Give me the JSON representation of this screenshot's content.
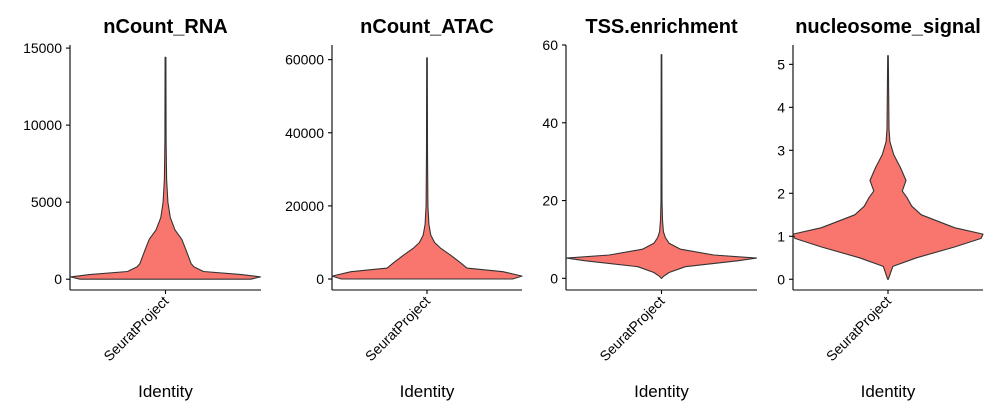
{
  "chart_data": [
    {
      "type": "violin",
      "title": "nCount_RNA",
      "categories": [
        "SeuratProject"
      ],
      "xlabel": "Identity",
      "ylabel": "",
      "yticks": [
        0,
        5000,
        10000,
        15000
      ],
      "ylim": [
        -700,
        15200
      ],
      "color": "#F8766D",
      "profile": [
        [
          0,
          0.9
        ],
        [
          150,
          1.0
        ],
        [
          300,
          0.8
        ],
        [
          500,
          0.4
        ],
        [
          800,
          0.3
        ],
        [
          1000,
          0.27
        ],
        [
          1500,
          0.24
        ],
        [
          2000,
          0.21
        ],
        [
          2600,
          0.17
        ],
        [
          3200,
          0.1
        ],
        [
          4000,
          0.05
        ],
        [
          5000,
          0.025
        ],
        [
          6500,
          0.012
        ],
        [
          9000,
          0.006
        ],
        [
          14400,
          0.004
        ]
      ]
    },
    {
      "type": "violin",
      "title": "nCount_ATAC",
      "categories": [
        "SeuratProject"
      ],
      "xlabel": "Identity",
      "ylabel": "",
      "yticks": [
        0,
        20000,
        40000,
        60000
      ],
      "ylim": [
        -3000,
        64000
      ],
      "color": "#F8766D",
      "profile": [
        [
          0,
          0.9
        ],
        [
          800,
          1.0
        ],
        [
          2000,
          0.8
        ],
        [
          3000,
          0.42
        ],
        [
          4500,
          0.35
        ],
        [
          6500,
          0.25
        ],
        [
          8500,
          0.14
        ],
        [
          10000,
          0.08
        ],
        [
          12000,
          0.04
        ],
        [
          15000,
          0.02
        ],
        [
          20000,
          0.01
        ],
        [
          35000,
          0.005
        ],
        [
          60500,
          0.003
        ]
      ]
    },
    {
      "type": "violin",
      "title": "TSS.enrichment",
      "categories": [
        "SeuratProject"
      ],
      "xlabel": "Identity",
      "ylabel": "",
      "yticks": [
        0,
        20,
        40,
        60
      ],
      "ylim": [
        -3,
        60
      ],
      "color": "#F8766D",
      "profile": [
        [
          0,
          0.003
        ],
        [
          0.5,
          0.02
        ],
        [
          1.5,
          0.08
        ],
        [
          3,
          0.25
        ],
        [
          4.5,
          0.8
        ],
        [
          5.2,
          1.0
        ],
        [
          6,
          0.55
        ],
        [
          7.5,
          0.2
        ],
        [
          9,
          0.08
        ],
        [
          10.5,
          0.04
        ],
        [
          12,
          0.02
        ],
        [
          15,
          0.01
        ],
        [
          20,
          0.005
        ],
        [
          57.5,
          0.003
        ]
      ]
    },
    {
      "type": "violin",
      "title": "nucleosome_signal",
      "categories": [
        "SeuratProject"
      ],
      "xlabel": "Identity",
      "ylabel": "",
      "yticks": [
        0,
        1,
        2,
        3,
        4,
        5
      ],
      "ylim": [
        -0.25,
        5.45
      ],
      "color": "#F8766D",
      "profile": [
        [
          0,
          0.003
        ],
        [
          0.3,
          0.05
        ],
        [
          0.5,
          0.3
        ],
        [
          0.75,
          0.7
        ],
        [
          0.95,
          0.98
        ],
        [
          1.05,
          1.0
        ],
        [
          1.2,
          0.7
        ],
        [
          1.5,
          0.35
        ],
        [
          1.7,
          0.25
        ],
        [
          1.9,
          0.2
        ],
        [
          2.05,
          0.15
        ],
        [
          2.3,
          0.19
        ],
        [
          2.6,
          0.13
        ],
        [
          2.9,
          0.06
        ],
        [
          3.2,
          0.02
        ],
        [
          3.5,
          0.01
        ],
        [
          5.2,
          0.003
        ]
      ]
    }
  ]
}
